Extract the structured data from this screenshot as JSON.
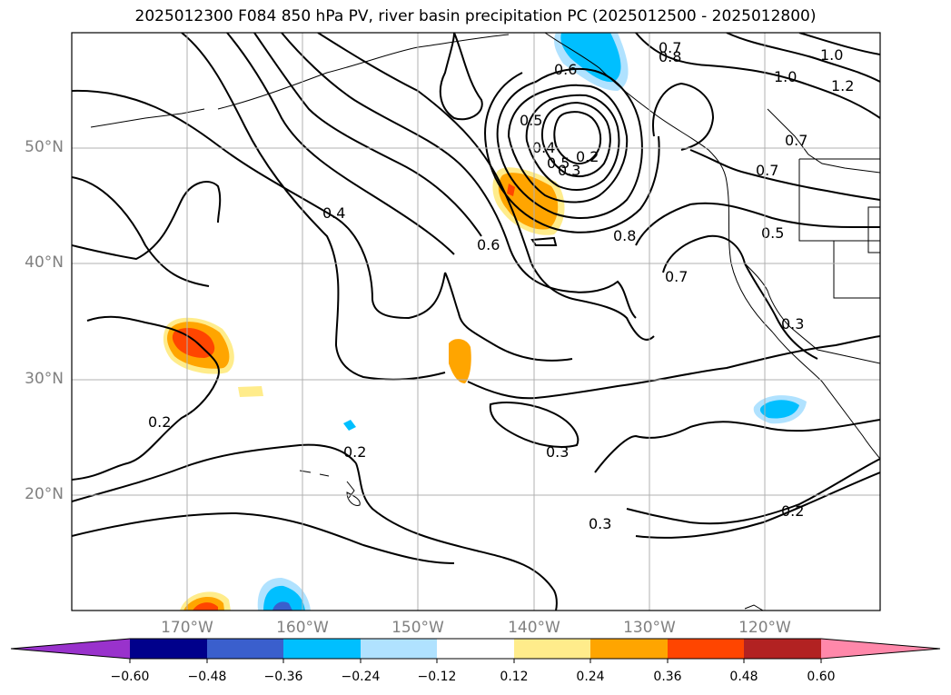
{
  "title": "2025012300 F084 850 hPa PV, river basin precipitation PC (2025012500 - 2025012800)",
  "map": {
    "lat_labels": [
      "50°N",
      "40°N",
      "30°N",
      "20°N"
    ],
    "lon_labels": [
      "170°W",
      "160°W",
      "150°W",
      "140°W",
      "130°W",
      "120°W"
    ],
    "contour_labels": [
      "0.2",
      "0.2",
      "0.2",
      "0.3",
      "0.3",
      "0.3",
      "0.4",
      "0.5",
      "0.5",
      "0.6",
      "0.6",
      "0.7",
      "0.7",
      "0.7",
      "0.7",
      "0.8",
      "0.8",
      "1.0",
      "1.0",
      "1.2",
      "0.2",
      "0.3",
      "0.4",
      "0.5"
    ]
  },
  "colorbar": {
    "ticks": [
      "−0.60",
      "−0.48",
      "−0.36",
      "−0.24",
      "−0.12",
      "0.12",
      "0.24",
      "0.36",
      "0.48",
      "0.60"
    ],
    "colors": [
      "#9932cc",
      "#00008b",
      "#3a5fcd",
      "#00bfff",
      "#b0e2ff",
      "#ffffff",
      "#ffec8b",
      "#ffa500",
      "#ff4500",
      "#b22222",
      "#ff88aa"
    ]
  }
}
